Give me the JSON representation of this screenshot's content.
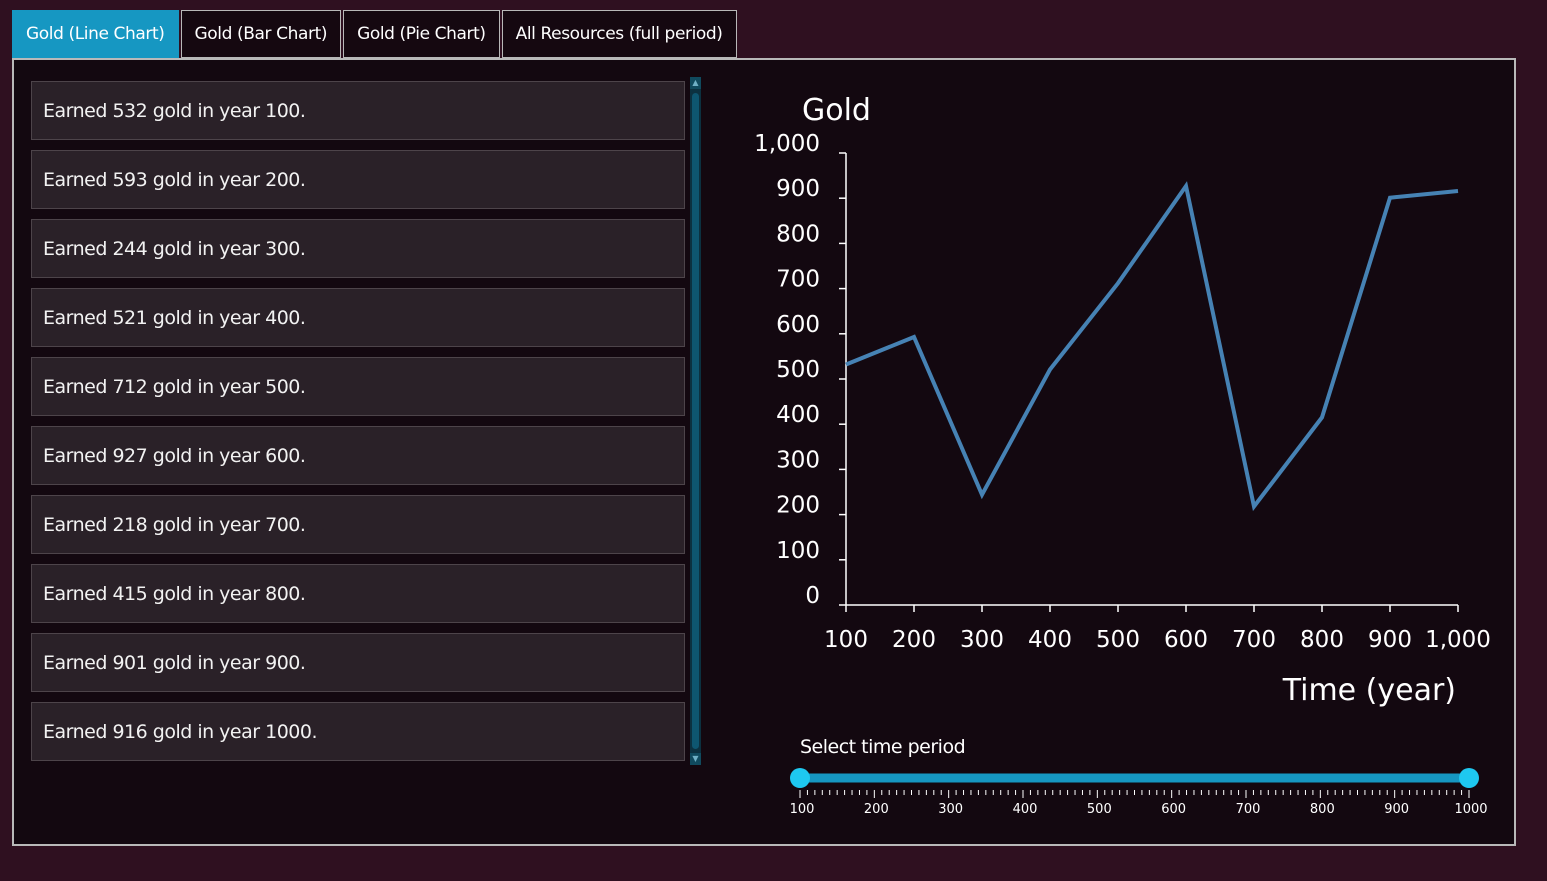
{
  "tabs": [
    {
      "label": "Gold (Line Chart)",
      "active": true
    },
    {
      "label": "Gold (Bar Chart)",
      "active": false
    },
    {
      "label": "Gold (Pie Chart)",
      "active": false
    },
    {
      "label": "All Resources (full period)",
      "active": false
    }
  ],
  "list": {
    "items": [
      {
        "text": "Earned 532 gold in year 100."
      },
      {
        "text": "Earned 593 gold in year 200."
      },
      {
        "text": "Earned 244 gold in year 300."
      },
      {
        "text": "Earned 521 gold in year 400."
      },
      {
        "text": "Earned 712 gold in year 500."
      },
      {
        "text": "Earned 927 gold in year 600."
      },
      {
        "text": "Earned 218 gold in year 700."
      },
      {
        "text": "Earned 415 gold in year 800."
      },
      {
        "text": "Earned 901 gold in year 900."
      },
      {
        "text": "Earned 916 gold in year 1000."
      }
    ]
  },
  "chart_data": {
    "type": "line",
    "title": "Gold",
    "xlabel": "Time (year)",
    "ylabel": "",
    "x": [
      100,
      200,
      300,
      400,
      500,
      600,
      700,
      800,
      900,
      1000
    ],
    "series": [
      {
        "values": [
          532,
          593,
          244,
          521,
          712,
          927,
          218,
          415,
          901,
          916
        ]
      }
    ],
    "xlim": [
      100,
      1000
    ],
    "ylim": [
      0,
      1000
    ],
    "x_ticks": [
      "100",
      "200",
      "300",
      "400",
      "500",
      "600",
      "700",
      "800",
      "900",
      "1,000"
    ],
    "y_ticks": [
      "0",
      "100",
      "200",
      "300",
      "400",
      "500",
      "600",
      "700",
      "800",
      "900",
      "1,000"
    ],
    "grid": false,
    "line_color": "#4682b4"
  },
  "slider": {
    "label": "Select time period",
    "min": 100,
    "max": 1000,
    "low": 100,
    "high": 1000,
    "tick_labels": [
      "100",
      "200",
      "300",
      "400",
      "500",
      "600",
      "700",
      "800",
      "900",
      "1000"
    ],
    "accent_color": "#1697c2",
    "handle_color": "#1ec8f0"
  }
}
